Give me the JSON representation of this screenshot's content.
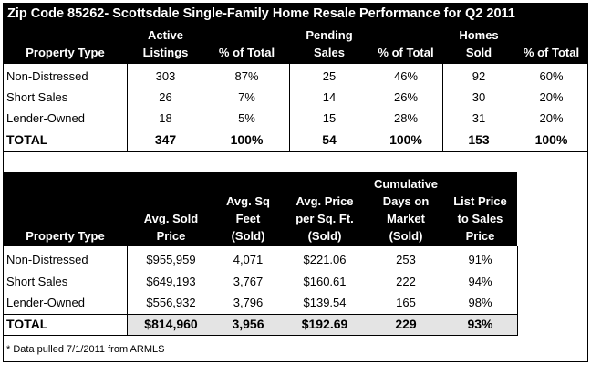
{
  "title": "Zip Code 85262- Scottsdale Single-Family Home Resale Performance for Q2 2011",
  "table1": {
    "headers": {
      "property_type": "Property Type",
      "active_listings": [
        "Active",
        "Listings"
      ],
      "pct_total_1": "% of Total",
      "pending_sales": [
        "Pending",
        "Sales"
      ],
      "pct_total_2": "% of Total",
      "homes_sold": [
        "Homes",
        "Sold"
      ],
      "pct_total_3": "% of Total"
    },
    "rows": [
      {
        "type": "Non-Distressed",
        "active": "303",
        "active_pct": "87%",
        "pending": "25",
        "pending_pct": "46%",
        "sold": "92",
        "sold_pct": "60%"
      },
      {
        "type": "Short Sales",
        "active": "26",
        "active_pct": "7%",
        "pending": "14",
        "pending_pct": "26%",
        "sold": "30",
        "sold_pct": "20%"
      },
      {
        "type": "Lender-Owned",
        "active": "18",
        "active_pct": "5%",
        "pending": "15",
        "pending_pct": "28%",
        "sold": "31",
        "sold_pct": "20%"
      }
    ],
    "total": {
      "type": "TOTAL",
      "active": "347",
      "active_pct": "100%",
      "pending": "54",
      "pending_pct": "100%",
      "sold": "153",
      "sold_pct": "100%"
    }
  },
  "table2": {
    "headers": {
      "property_type": "Property Type",
      "avg_sold_price": [
        "Avg. Sold",
        "Price"
      ],
      "avg_sq_feet": [
        "Avg. Sq",
        "Feet",
        "(Sold)"
      ],
      "avg_price_sqft": [
        "Avg. Price",
        "per Sq. Ft.",
        "(Sold)"
      ],
      "cum_days": [
        "Cumulative",
        "Days on",
        "Market",
        "(Sold)"
      ],
      "list_to_sales": [
        "List Price",
        "to Sales",
        "Price"
      ]
    },
    "rows": [
      {
        "type": "Non-Distressed",
        "price": "$955,959",
        "sqft": "4,071",
        "ppsf": "$221.06",
        "days": "253",
        "ratio": "91%"
      },
      {
        "type": "Short Sales",
        "price": "$649,193",
        "sqft": "3,767",
        "ppsf": "$160.61",
        "days": "222",
        "ratio": "94%"
      },
      {
        "type": "Lender-Owned",
        "price": "$556,932",
        "sqft": "3,796",
        "ppsf": "$139.54",
        "days": "165",
        "ratio": "98%"
      }
    ],
    "total": {
      "type": "TOTAL",
      "price": "$814,960",
      "sqft": "3,956",
      "ppsf": "$192.69",
      "days": "229",
      "ratio": "93%"
    }
  },
  "footnote": "* Data pulled 7/1/2011 from ARMLS"
}
